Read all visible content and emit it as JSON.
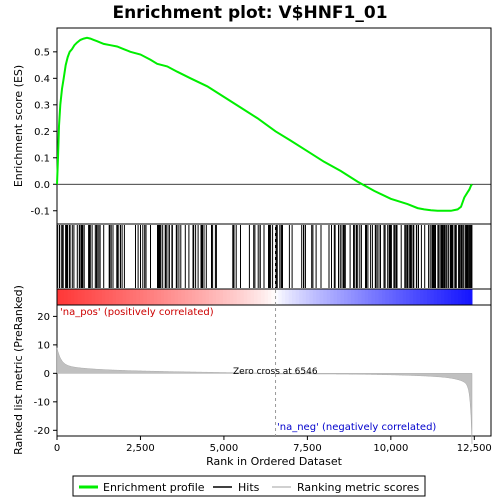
{
  "chart_data": {
    "type": "line",
    "title": "Enrichment plot: V$HNF1_01",
    "panels": {
      "enrichment": {
        "ylabel": "Enrichment score (ES)",
        "ylim": [
          -0.15,
          0.59
        ],
        "yticks": [
          -0.1,
          0.0,
          0.1,
          0.2,
          0.3,
          0.4,
          0.5
        ],
        "ytick_labels": [
          "-0.1",
          "0.0",
          "0.1",
          "0.2",
          "0.3",
          "0.4",
          "0.5"
        ],
        "series": [
          {
            "name": "Enrichment profile",
            "color": "#00ee00",
            "x": [
              0,
              30,
              60,
              100,
              150,
              200,
              260,
              320,
              380,
              450,
              520,
              600,
              700,
              800,
              900,
              1000,
              1100,
              1200,
              1300,
              1400,
              1600,
              1800,
              2000,
              2200,
              2500,
              2800,
              3000,
              3300,
              3600,
              4000,
              4500,
              5000,
              5500,
              6000,
              6546,
              7000,
              7500,
              8000,
              8500,
              9000,
              9500,
              10000,
              10500,
              10800,
              11000,
              11200,
              11400,
              11600,
              11800,
              12000,
              12100,
              12200,
              12300,
              12350,
              12400,
              12430
            ],
            "values": [
              0.0,
              0.1,
              0.22,
              0.3,
              0.36,
              0.4,
              0.45,
              0.48,
              0.5,
              0.51,
              0.525,
              0.535,
              0.545,
              0.55,
              0.553,
              0.55,
              0.545,
              0.54,
              0.535,
              0.53,
              0.525,
              0.52,
              0.51,
              0.5,
              0.49,
              0.47,
              0.455,
              0.445,
              0.425,
              0.4,
              0.37,
              0.33,
              0.29,
              0.25,
              0.2,
              0.165,
              0.125,
              0.085,
              0.05,
              0.01,
              -0.025,
              -0.055,
              -0.075,
              -0.09,
              -0.095,
              -0.098,
              -0.1,
              -0.1,
              -0.1,
              -0.095,
              -0.085,
              -0.05,
              -0.03,
              -0.02,
              -0.005,
              0.0
            ]
          }
        ]
      },
      "hits": {
        "description": "gene set member positions along ranked list",
        "gene_count_bars": 260
      },
      "ranking_metric": {
        "ylabel": "Ranked list metric (PreRanked)",
        "ylim": [
          -22,
          24
        ],
        "yticks": [
          -20,
          -10,
          0,
          10,
          20
        ],
        "ytick_labels": [
          "-20",
          "-10",
          "0",
          "10",
          "20"
        ],
        "zero_cross": 6546,
        "zero_cross_label": "Zero cross at 6546",
        "pos_label": "'na_pos' (positively correlated)",
        "neg_label": "'na_neg' (negatively correlated)"
      }
    },
    "x_axis": {
      "xlabel": "Rank in Ordered Dataset",
      "xlim": [
        0,
        13000
      ],
      "xticks": [
        0,
        2500,
        5000,
        7500,
        10000,
        12500
      ],
      "xtick_labels": [
        "0",
        "2,500",
        "5,000",
        "7,500",
        "10,000",
        "12,500"
      ],
      "n_genes": 12430
    },
    "legend": {
      "items": [
        {
          "label": "Enrichment profile",
          "color": "#00ee00"
        },
        {
          "label": "Hits",
          "color": "#000000"
        },
        {
          "label": "Ranking metric scores",
          "color": "#c0c0c0"
        }
      ],
      "placement": "bottom"
    }
  }
}
